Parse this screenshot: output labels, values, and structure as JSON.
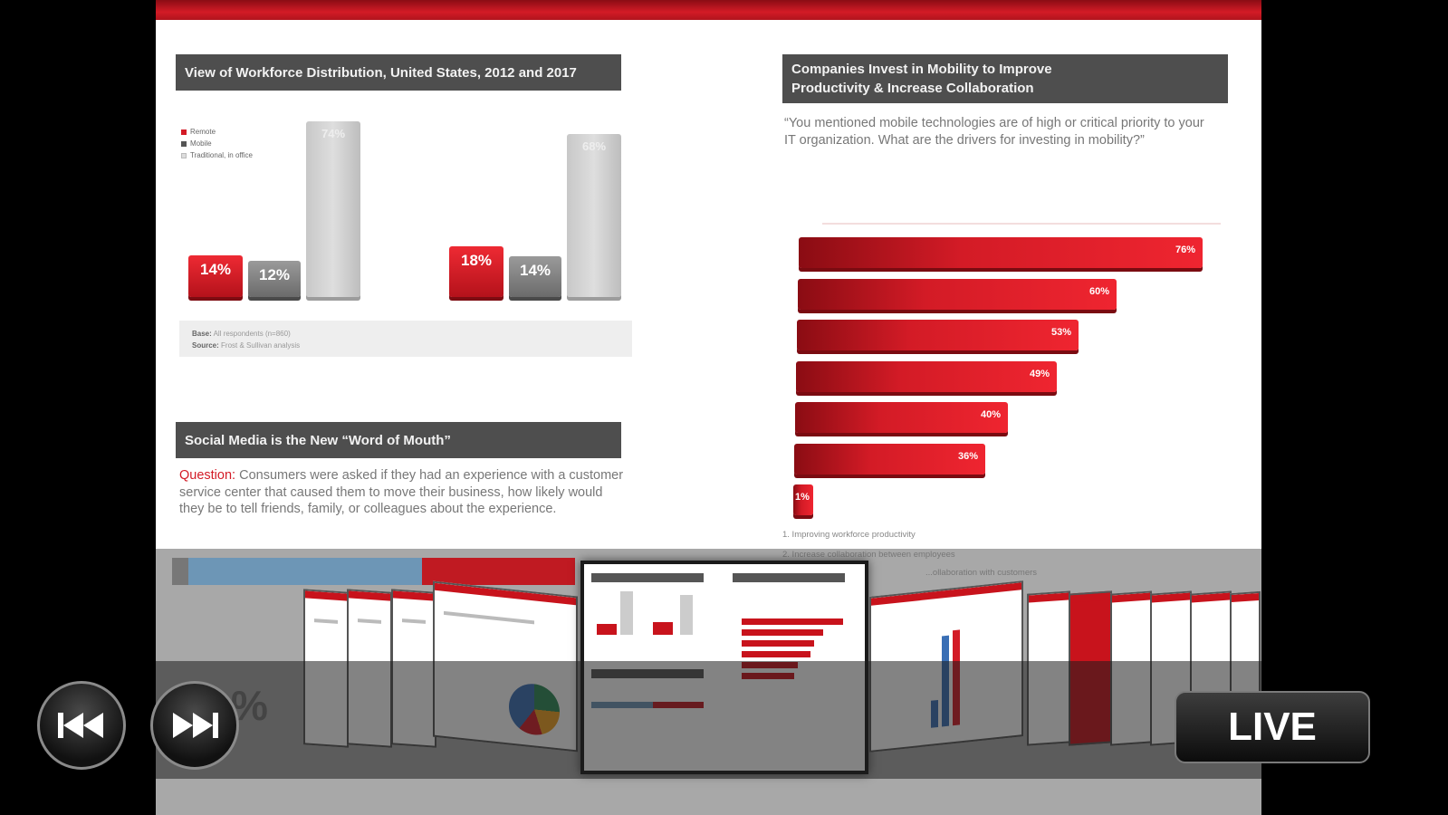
{
  "slide": {
    "left_panel": {
      "chart_title": "View of Workforce Distribution, United States, 2012 and 2017",
      "legend": [
        "Remote",
        "Mobile",
        "Traditional, in office"
      ],
      "bars_2012": {
        "remote": "14%",
        "mobile": "12%",
        "traditional": "74%"
      },
      "bars_2017": {
        "remote": "18%",
        "mobile": "14%",
        "traditional": "68%"
      },
      "source_base_label": "Base:",
      "source_base_text": "All respondents (n=860)",
      "source_label": "Source:",
      "source_text": "Frost & Sullivan analysis",
      "social_title": "Social Media is the New “Word of Mouth”",
      "question_label": "Question:",
      "question_text": " Consumers were asked if they had an experience with a customer service center that caused them to move their business, how likely would they be to tell friends, family, or colleagues about the experience."
    },
    "right_panel": {
      "title_line1": "Companies Invest in Mobility to Improve",
      "title_line2": "Productivity & Increase Collaboration",
      "quote": "“You mentioned mobile technologies are of high or critical priority to your IT organization. What are the drivers for investing in mobility?”",
      "caption1": "1. Improving workforce productivity",
      "caption2": "2. Increase collaboration between employees",
      "caption3": "   ...ollaboration with customers"
    }
  },
  "chart_data": [
    {
      "type": "bar",
      "title": "View of Workforce Distribution, United States, 2012 and 2017",
      "categories": [
        "2012",
        "2017"
      ],
      "series": [
        {
          "name": "Remote",
          "values": [
            14,
            18
          ]
        },
        {
          "name": "Mobile",
          "values": [
            12,
            14
          ]
        },
        {
          "name": "Traditional, in office",
          "values": [
            74,
            68
          ]
        }
      ]
    },
    {
      "type": "bar",
      "orientation": "horizontal",
      "title": "Companies Invest in Mobility to Improve Productivity & Increase Collaboration",
      "values": [
        76,
        60,
        53,
        49,
        40,
        36,
        1
      ],
      "labels": [
        "76%",
        "60%",
        "53%",
        "49%",
        "40%",
        "36%",
        "1%"
      ]
    }
  ],
  "controls": {
    "prev_icon": "skip-back-icon",
    "next_icon": "skip-forward-icon",
    "live_label": "LIVE"
  },
  "carousel_fragment": "%",
  "colors": {
    "accent": "#d31b26",
    "header": "#4e4e4e"
  }
}
